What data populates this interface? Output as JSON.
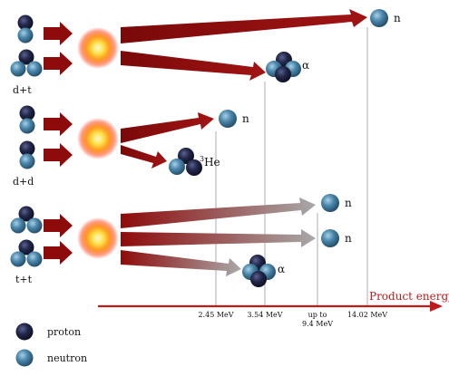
{
  "reactions": [
    {
      "label": "d+t",
      "products": [
        {
          "symbol": "n"
        },
        {
          "symbol": "α"
        }
      ]
    },
    {
      "label": "d+d",
      "products": [
        {
          "symbol": "n"
        },
        {
          "symbol": "He",
          "superscript": "3"
        }
      ]
    },
    {
      "label": "t+t",
      "products": [
        {
          "symbol": "n"
        },
        {
          "symbol": "n"
        },
        {
          "symbol": "α"
        }
      ]
    }
  ],
  "axis": {
    "label": "Product energy",
    "ticks": [
      {
        "lines": [
          "2.45 MeV"
        ]
      },
      {
        "lines": [
          "3.54 MeV"
        ]
      },
      {
        "lines": [
          "up to",
          "9.4 MeV"
        ]
      },
      {
        "lines": [
          "14.02 MeV"
        ]
      }
    ]
  },
  "legend": [
    {
      "label": "proton"
    },
    {
      "label": "neutron"
    }
  ],
  "colors": {
    "axis": "#c0191b",
    "arrow_dark": "#8e0b0b",
    "proton": "#1c1f3d",
    "neutron": "#3f7fa3"
  }
}
